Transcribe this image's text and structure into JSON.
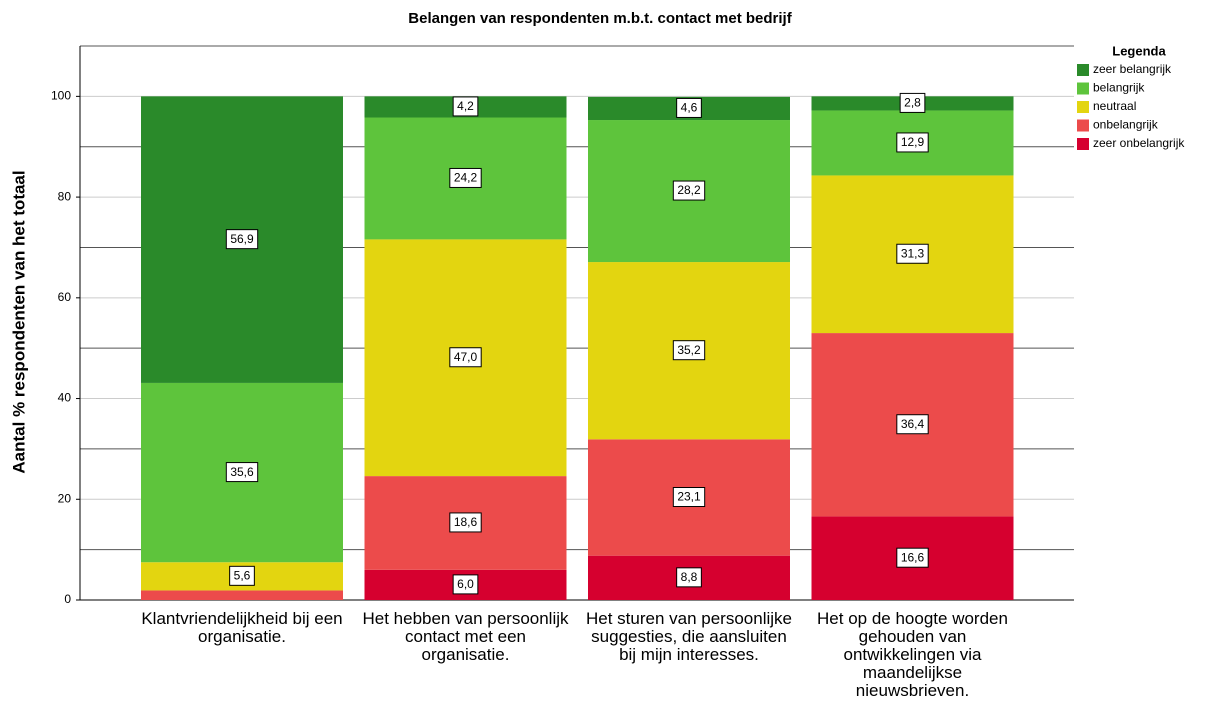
{
  "chart_data": {
    "type": "stacked_bar",
    "title": "Belangen van respondenten m.b.t. contact met bedrijf",
    "ylabel": "Aantal % respondenten van het totaal",
    "legend_title": "Legenda",
    "legend": "right",
    "categories": [
      "Klantvriendelijkheid bij een organisatie.",
      "Het hebben van persoonlijk contact met een organisatie.",
      "Het sturen van persoonlijke suggesties, die aansluiten bij mijn interesses.",
      "Het op de hoogte worden gehouden van ontwikkelingen via maandelijkse nieuwsbrieven."
    ],
    "series": [
      {
        "name": "zeer belangrijk",
        "color": "#2a8a2a",
        "values": [
          56.9,
          4.2,
          4.6,
          2.8
        ],
        "value_labels": [
          "56,9",
          "4,2",
          "4,6",
          "2,8"
        ]
      },
      {
        "name": "belangrijk",
        "color": "#5ec43c",
        "values": [
          35.6,
          24.2,
          28.2,
          12.9
        ],
        "value_labels": [
          "35,6",
          "24,2",
          "28,2",
          "12,9"
        ]
      },
      {
        "name": "neutraal",
        "color": "#e3d510",
        "values": [
          5.6,
          47.0,
          35.2,
          31.3
        ],
        "value_labels": [
          "5,6",
          "47,0",
          "35,2",
          "31,3"
        ]
      },
      {
        "name": "onbelangrijk",
        "color": "#ec4b4b",
        "values": [
          1.9,
          18.6,
          23.1,
          36.4
        ],
        "value_labels": [
          null,
          "18,6",
          "23,1",
          "36,4"
        ]
      },
      {
        "name": "zeer onbelangrijk",
        "color": "#d6002f",
        "values": [
          0,
          6.0,
          8.8,
          16.6
        ],
        "value_labels": [
          null,
          "6,0",
          "8,8",
          "16,6"
        ]
      }
    ],
    "stack_order": "bottom_is_last",
    "ylim": [
      0,
      110
    ],
    "yticks": [
      0,
      20,
      40,
      60,
      80,
      100
    ],
    "grid": true,
    "minor_grid": [
      10,
      30,
      50,
      70,
      90,
      110
    ]
  }
}
